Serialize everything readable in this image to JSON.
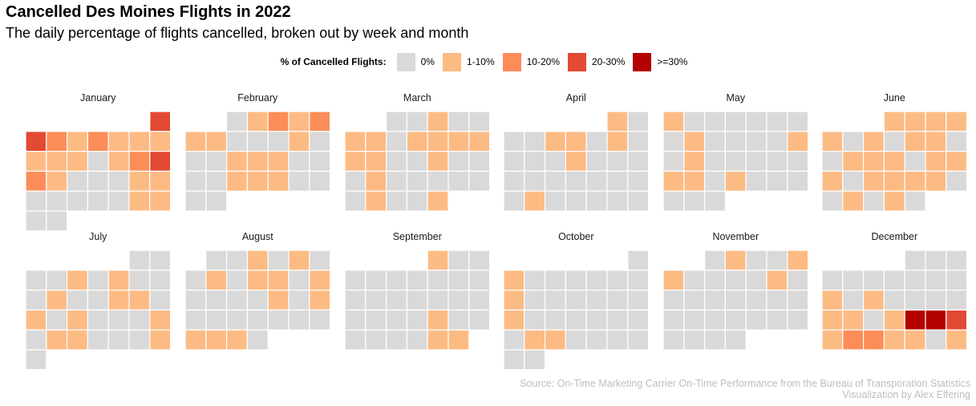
{
  "chart_data": {
    "type": "heatmap",
    "title": "Cancelled Des Moines Flights in 2022",
    "subtitle": "The daily percentage of flights cancelled, broken out by week and month",
    "legend_title": "% of Cancelled Flights:",
    "legend_placement": "top-center",
    "categories": [
      "0%",
      "1-10%",
      "10-20%",
      "20-30%",
      ">=30%"
    ],
    "colors": {
      "0%": "#d9d9d9",
      "1-10%": "#fdbb84",
      "10-20%": "#fc8d59",
      "20-30%": "#e34a33",
      ">=30%": "#b30000"
    },
    "year": 2022,
    "layout": "calendar grid per month: columns = day of week, rows = week of month",
    "level_encoding": "0 = 0%, 1 = 1-10%, 2 = 10-20%, 3 = 20-30%, 4 = >=30%",
    "months": [
      {
        "name": "January",
        "days": [
          3,
          3,
          2,
          1,
          2,
          1,
          1,
          1,
          1,
          1,
          1,
          0,
          1,
          2,
          3,
          2,
          1,
          0,
          0,
          0,
          1,
          1,
          0,
          0,
          0,
          0,
          0,
          1,
          1,
          0,
          0
        ]
      },
      {
        "name": "February",
        "days": [
          0,
          1,
          2,
          1,
          2,
          1,
          1,
          0,
          0,
          0,
          1,
          0,
          0,
          0,
          1,
          1,
          1,
          0,
          0,
          0,
          0,
          1,
          1,
          1,
          0,
          0,
          0,
          0
        ]
      },
      {
        "name": "March",
        "days": [
          0,
          0,
          1,
          0,
          0,
          1,
          1,
          0,
          1,
          1,
          1,
          1,
          1,
          1,
          0,
          0,
          1,
          0,
          0,
          0,
          1,
          0,
          0,
          0,
          0,
          0,
          0,
          1,
          0,
          0,
          1
        ]
      },
      {
        "name": "April",
        "days": [
          1,
          0,
          0,
          0,
          1,
          1,
          0,
          1,
          0,
          0,
          0,
          0,
          1,
          0,
          0,
          0,
          0,
          0,
          0,
          0,
          0,
          0,
          0,
          0,
          1,
          0,
          0,
          0,
          0,
          0
        ]
      },
      {
        "name": "May",
        "days": [
          1,
          0,
          0,
          0,
          0,
          0,
          0,
          0,
          1,
          0,
          0,
          0,
          0,
          1,
          0,
          1,
          0,
          0,
          0,
          0,
          0,
          1,
          1,
          0,
          1,
          0,
          0,
          0,
          0,
          0,
          0
        ]
      },
      {
        "name": "June",
        "days": [
          1,
          1,
          1,
          1,
          1,
          0,
          1,
          0,
          1,
          1,
          0,
          0,
          1,
          1,
          1,
          0,
          1,
          1,
          1,
          0,
          1,
          1,
          1,
          1,
          0,
          0,
          1,
          0,
          1,
          0
        ]
      },
      {
        "name": "July",
        "days": [
          0,
          0,
          0,
          0,
          1,
          0,
          1,
          0,
          0,
          0,
          1,
          0,
          0,
          1,
          1,
          0,
          1,
          0,
          1,
          0,
          0,
          0,
          1,
          0,
          1,
          1,
          0,
          0,
          0,
          1,
          0
        ]
      },
      {
        "name": "August",
        "days": [
          0,
          0,
          1,
          0,
          1,
          0,
          0,
          1,
          0,
          1,
          1,
          0,
          1,
          0,
          0,
          0,
          0,
          1,
          0,
          1,
          0,
          0,
          0,
          0,
          0,
          0,
          0,
          1,
          1,
          1,
          0
        ]
      },
      {
        "name": "September",
        "days": [
          1,
          0,
          0,
          0,
          0,
          0,
          0,
          0,
          0,
          0,
          0,
          0,
          0,
          0,
          0,
          0,
          0,
          0,
          0,
          0,
          0,
          1,
          0,
          0,
          0,
          0,
          0,
          0,
          1,
          1
        ]
      },
      {
        "name": "October",
        "days": [
          0,
          1,
          0,
          0,
          0,
          0,
          0,
          0,
          1,
          0,
          0,
          0,
          0,
          0,
          0,
          1,
          0,
          0,
          0,
          0,
          0,
          0,
          0,
          1,
          1,
          0,
          0,
          0,
          0,
          0,
          0
        ]
      },
      {
        "name": "November",
        "days": [
          0,
          1,
          0,
          0,
          1,
          1,
          0,
          0,
          0,
          0,
          1,
          0,
          0,
          0,
          0,
          0,
          0,
          0,
          0,
          0,
          0,
          0,
          0,
          0,
          0,
          0,
          0,
          0,
          0,
          0
        ]
      },
      {
        "name": "December",
        "days": [
          0,
          0,
          0,
          0,
          0,
          0,
          0,
          0,
          0,
          0,
          1,
          0,
          1,
          0,
          0,
          0,
          0,
          1,
          1,
          0,
          1,
          4,
          4,
          3,
          1,
          2,
          2,
          1,
          1,
          0,
          1
        ]
      }
    ]
  },
  "caption": {
    "line1": "Source: On-Time Marketing Carrier On-Time Performance from the Bureau of Transporation Statistics",
    "line2": "Visualization by Alex Elfering"
  }
}
